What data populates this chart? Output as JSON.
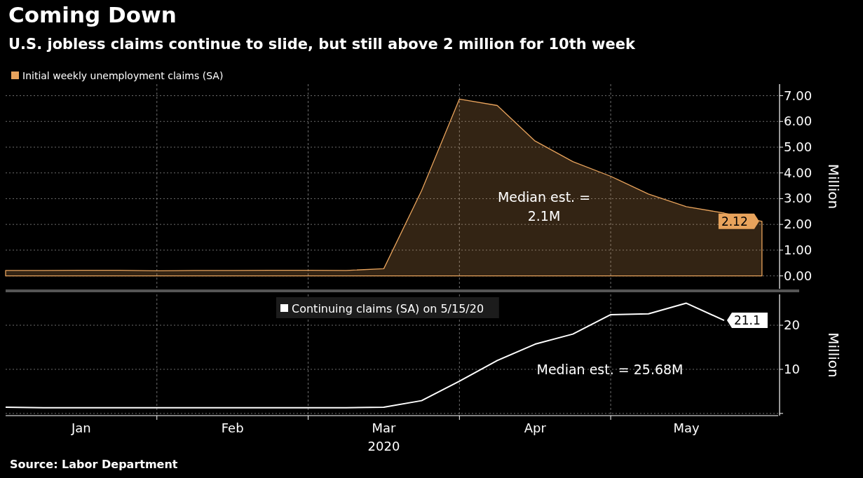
{
  "chart_data": [
    {
      "type": "area",
      "title": "Coming Down",
      "subtitle": "U.S. jobless claims continue to slide, but still above 2 million for 10th week",
      "ylabel": "Million",
      "x": [
        "2020-01-04",
        "2020-01-11",
        "2020-01-18",
        "2020-01-25",
        "2020-02-01",
        "2020-02-08",
        "2020-02-15",
        "2020-02-22",
        "2020-02-29",
        "2020-03-07",
        "2020-03-14",
        "2020-03-21",
        "2020-03-28",
        "2020-04-04",
        "2020-04-11",
        "2020-04-18",
        "2020-04-25",
        "2020-05-02",
        "2020-05-09",
        "2020-05-16",
        "2020-05-23"
      ],
      "series": [
        {
          "name": "Initial weekly unemployment claims (SA)",
          "color": "#e8a35c",
          "values": [
            0.21,
            0.21,
            0.22,
            0.22,
            0.2,
            0.21,
            0.21,
            0.22,
            0.22,
            0.21,
            0.28,
            3.31,
            6.87,
            6.62,
            5.24,
            4.44,
            3.87,
            3.18,
            2.69,
            2.44,
            2.12
          ],
          "value_labels": [
            null,
            null,
            null,
            null,
            null,
            null,
            null,
            null,
            null,
            null,
            null,
            null,
            null,
            null,
            null,
            null,
            null,
            null,
            null,
            null,
            "2.12"
          ]
        }
      ],
      "xlim": [
        "2020-01-04",
        "2020-05-26"
      ],
      "xticks": [
        {
          "value": "2020-02-01",
          "label": null
        },
        {
          "value": "2020-02-29",
          "label": null
        },
        {
          "value": "2020-03-28",
          "label": null
        },
        {
          "value": "2020-04-25",
          "label": null
        }
      ],
      "ylim": [
        -0.5,
        7.45
      ],
      "yticks": [
        {
          "value": 0,
          "label": "0.00"
        },
        {
          "value": 1,
          "label": "1.00"
        },
        {
          "value": 2,
          "label": "2.00"
        },
        {
          "value": 3,
          "label": "3.00"
        },
        {
          "value": 4,
          "label": "4.00"
        },
        {
          "value": 5,
          "label": "5.00"
        },
        {
          "value": 6,
          "label": "6.00"
        },
        {
          "value": 7,
          "label": "7.00"
        }
      ],
      "tick_labels": "y",
      "grid": true,
      "legend": "top left",
      "annotations": [
        "Median est. =\n2.1M"
      ]
    },
    {
      "type": "line",
      "ylabel": "Million",
      "x": [
        "2020-01-04",
        "2020-01-11",
        "2020-01-18",
        "2020-01-25",
        "2020-02-01",
        "2020-02-08",
        "2020-02-15",
        "2020-02-22",
        "2020-02-29",
        "2020-03-07",
        "2020-03-14",
        "2020-03-21",
        "2020-03-28",
        "2020-04-04",
        "2020-04-11",
        "2020-04-18",
        "2020-04-25",
        "2020-05-02",
        "2020-05-09",
        "2020-05-16"
      ],
      "series": [
        {
          "name": "Continuing claims (SA) on 5/15/20",
          "color": "#ffffff",
          "values": [
            1.4,
            1.3,
            1.3,
            1.3,
            1.3,
            1.3,
            1.3,
            1.3,
            1.3,
            1.3,
            1.4,
            2.9,
            7.3,
            12.0,
            15.7,
            18.0,
            22.4,
            22.6,
            25.0,
            21.1
          ],
          "value_labels": [
            null,
            null,
            null,
            null,
            null,
            null,
            null,
            null,
            null,
            null,
            null,
            null,
            null,
            null,
            null,
            null,
            null,
            null,
            null,
            "21.1"
          ]
        }
      ],
      "xlim": [
        "2020-01-04",
        "2020-05-26"
      ],
      "xticks": [
        {
          "value": "2020-01-18",
          "label": "Jan"
        },
        {
          "value": "2020-02-01",
          "label": null
        },
        {
          "value": "2020-02-15",
          "label": "Feb"
        },
        {
          "value": "2020-02-29",
          "label": null
        },
        {
          "value": "2020-03-14",
          "label": "Mar\n2020"
        },
        {
          "value": "2020-03-28",
          "label": null
        },
        {
          "value": "2020-04-11",
          "label": "Apr"
        },
        {
          "value": "2020-04-25",
          "label": null
        },
        {
          "value": "2020-05-09",
          "label": "May"
        }
      ],
      "ylim": [
        -0.5,
        27
      ],
      "yticks": [
        {
          "value": 0,
          "label": null
        },
        10,
        20
      ],
      "grid": true,
      "legend": "top",
      "annotations": [
        "Median est. = 25.68M",
        "Source: Labor Department"
      ]
    }
  ]
}
